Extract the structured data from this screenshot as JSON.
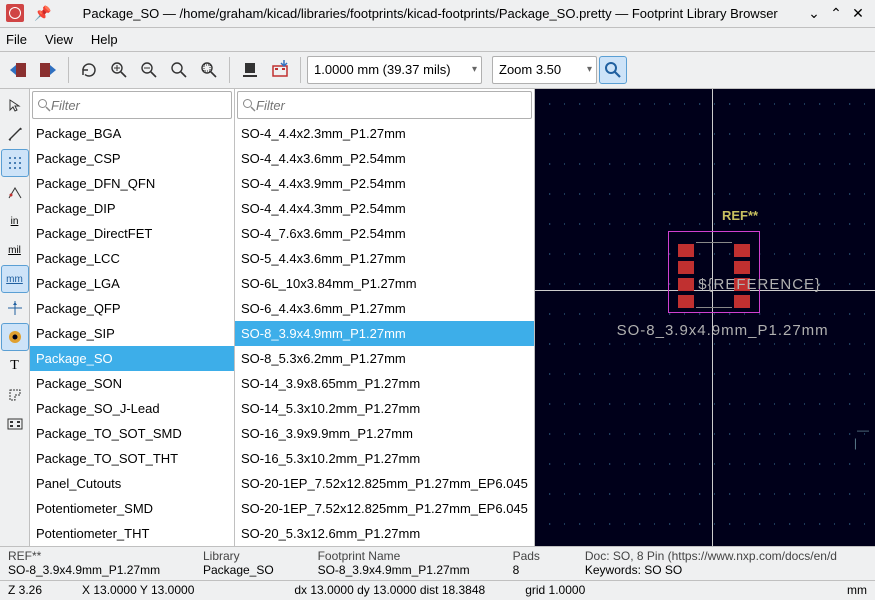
{
  "window": {
    "title": "Package_SO — /home/graham/kicad/libraries/footprints/kicad-footprints/Package_SO.pretty — Footprint Library Browser"
  },
  "menu": {
    "file": "File",
    "view": "View",
    "help": "Help"
  },
  "toolbar": {
    "grid_combo": "1.0000 mm (39.37 mils)",
    "zoom_combo": "Zoom 3.50"
  },
  "filters": {
    "lib_placeholder": "Filter",
    "fp_placeholder": "Filter"
  },
  "libraries": [
    "Package_BGA",
    "Package_CSP",
    "Package_DFN_QFN",
    "Package_DIP",
    "Package_DirectFET",
    "Package_LCC",
    "Package_LGA",
    "Package_QFP",
    "Package_SIP",
    "Package_SO",
    "Package_SON",
    "Package_SO_J-Lead",
    "Package_TO_SOT_SMD",
    "Package_TO_SOT_THT",
    "Panel_Cutouts",
    "Potentiometer_SMD",
    "Potentiometer_THT"
  ],
  "selected_library": "Package_SO",
  "footprints": [
    "SO-4_4.4x2.3mm_P1.27mm",
    "SO-4_4.4x3.6mm_P2.54mm",
    "SO-4_4.4x3.9mm_P2.54mm",
    "SO-4_4.4x4.3mm_P2.54mm",
    "SO-4_7.6x3.6mm_P2.54mm",
    "SO-5_4.4x3.6mm_P1.27mm",
    "SO-6L_10x3.84mm_P1.27mm",
    "SO-6_4.4x3.6mm_P1.27mm",
    "SO-8_3.9x4.9mm_P1.27mm",
    "SO-8_5.3x6.2mm_P1.27mm",
    "SO-14_3.9x8.65mm_P1.27mm",
    "SO-14_5.3x10.2mm_P1.27mm",
    "SO-16_3.9x9.9mm_P1.27mm",
    "SO-16_5.3x10.2mm_P1.27mm",
    "SO-20-1EP_7.52x12.825mm_P1.27mm_EP6.045",
    "SO-20-1EP_7.52x12.825mm_P1.27mm_EP6.045",
    "SO-20_5.3x12.6mm_P1.27mm"
  ],
  "selected_footprint": "SO-8_3.9x4.9mm_P1.27mm",
  "canvas": {
    "ref": "REF**",
    "value": "${REFERENCE}",
    "fpname": "SO-8_3.9x4.9mm_P1.27mm",
    "pad_color": "#c03030",
    "courtyard_color": "#d040d0",
    "bg_color": "#00001a",
    "crosshair_color": "#cccccc"
  },
  "status": {
    "ref_lbl": "REF**",
    "ref_val": "SO-8_3.9x4.9mm_P1.27mm",
    "lib_lbl": "Library",
    "lib_val": "Package_SO",
    "fp_lbl": "Footprint Name",
    "fp_val": "SO-8_3.9x4.9mm_P1.27mm",
    "pads_lbl": "Pads",
    "pads_val": "8",
    "doc_lbl": "Doc: SO, 8 Pin (https://www.nxp.com/docs/en/d",
    "kw_lbl": "Keywords: SO SO",
    "z": "Z 3.26",
    "xy": "X 13.0000  Y 13.0000",
    "dxy": "dx 13.0000  dy 13.0000  dist 18.3848",
    "grid": "grid 1.0000",
    "unit": "mm"
  }
}
